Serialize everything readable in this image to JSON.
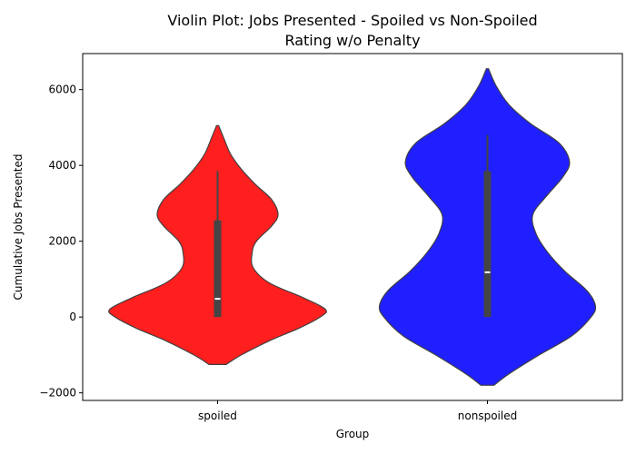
{
  "chart_data": {
    "type": "violin",
    "title": "Violin Plot: Jobs Presented - Spoiled vs Non-Spoiled",
    "subtitle": "Rating w/o Penalty",
    "xlabel": "Group",
    "ylabel": "Cumulative Jobs Presented",
    "ylim": [
      -2200,
      6950
    ],
    "yticks": [
      -2000,
      0,
      2000,
      4000,
      6000
    ],
    "yticklabels": [
      "−2000",
      "0",
      "2000",
      "4000",
      "6000"
    ],
    "categories": [
      "spoiled",
      "nonspoiled"
    ],
    "grid": false,
    "groups": [
      {
        "name": "spoiled",
        "color": "#ff0000",
        "kde_min": -1250,
        "kde_max": 5050,
        "profile": [
          [
            -1250,
            0.08
          ],
          [
            -1000,
            0.22
          ],
          [
            -600,
            0.5
          ],
          [
            -300,
            0.75
          ],
          [
            0,
            0.95
          ],
          [
            200,
            1.0
          ],
          [
            500,
            0.8
          ],
          [
            900,
            0.48
          ],
          [
            1300,
            0.33
          ],
          [
            1700,
            0.32
          ],
          [
            2000,
            0.36
          ],
          [
            2400,
            0.5
          ],
          [
            2700,
            0.56
          ],
          [
            3100,
            0.5
          ],
          [
            3500,
            0.35
          ],
          [
            3900,
            0.22
          ],
          [
            4300,
            0.12
          ],
          [
            4700,
            0.06
          ],
          [
            5050,
            0.01
          ]
        ],
        "whisker_low": 0,
        "whisker_high": 3850,
        "q1": 0,
        "q3": 2550,
        "median": 480
      },
      {
        "name": "nonspoiled",
        "color": "#0000ff",
        "kde_min": -1800,
        "kde_max": 6550,
        "profile": [
          [
            -1800,
            0.06
          ],
          [
            -1500,
            0.2
          ],
          [
            -1000,
            0.48
          ],
          [
            -500,
            0.78
          ],
          [
            0,
            0.96
          ],
          [
            300,
            1.0
          ],
          [
            700,
            0.92
          ],
          [
            1200,
            0.72
          ],
          [
            1700,
            0.56
          ],
          [
            2200,
            0.45
          ],
          [
            2700,
            0.42
          ],
          [
            3200,
            0.55
          ],
          [
            3700,
            0.7
          ],
          [
            4100,
            0.76
          ],
          [
            4600,
            0.66
          ],
          [
            5100,
            0.4
          ],
          [
            5600,
            0.2
          ],
          [
            6100,
            0.08
          ],
          [
            6550,
            0.01
          ]
        ],
        "whisker_low": 0,
        "whisker_high": 4800,
        "q1": 0,
        "q3": 3850,
        "median": 1180
      }
    ]
  }
}
